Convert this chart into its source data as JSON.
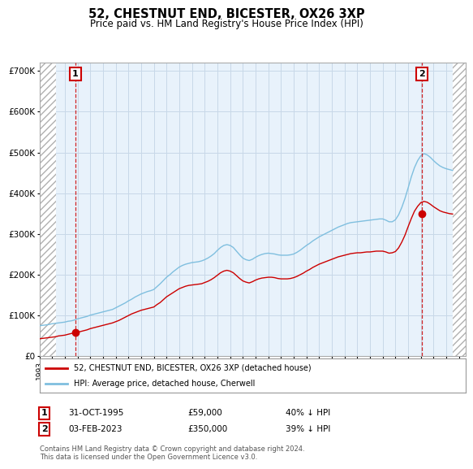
{
  "title": "52, CHESTNUT END, BICESTER, OX26 3XP",
  "subtitle": "Price paid vs. HM Land Registry's House Price Index (HPI)",
  "xlim_left": 1993.0,
  "xlim_right": 2026.5,
  "ylim_bottom": 0,
  "ylim_top": 720000,
  "yticks": [
    0,
    100000,
    200000,
    300000,
    400000,
    500000,
    600000,
    700000
  ],
  "ytick_labels": [
    "£0",
    "£100K",
    "£200K",
    "£300K",
    "£400K",
    "£500K",
    "£600K",
    "£700K"
  ],
  "hpi_color": "#7fbfdf",
  "price_color": "#cc0000",
  "marker1_x": 1995.83,
  "marker1_y": 59000,
  "marker2_x": 2023.08,
  "marker2_y": 350000,
  "grid_color": "#c8d8e8",
  "bg_plot": "#e8f2fb",
  "hatch_left_end": 1994.3,
  "hatch_right_start": 2025.5,
  "legend_line1": "52, CHESTNUT END, BICESTER, OX26 3XP (detached house)",
  "legend_line2": "HPI: Average price, detached house, Cherwell",
  "table_row1": [
    "1",
    "31-OCT-1995",
    "£59,000",
    "40% ↓ HPI"
  ],
  "table_row2": [
    "2",
    "03-FEB-2023",
    "£350,000",
    "39% ↓ HPI"
  ],
  "footnote": "Contains HM Land Registry data © Crown copyright and database right 2024.\nThis data is licensed under the Open Government Licence v3.0.",
  "hpi_x": [
    1993.0,
    1993.25,
    1993.5,
    1993.75,
    1994.0,
    1994.25,
    1994.5,
    1994.75,
    1995.0,
    1995.25,
    1995.5,
    1995.75,
    1996.0,
    1996.25,
    1996.5,
    1996.75,
    1997.0,
    1997.25,
    1997.5,
    1997.75,
    1998.0,
    1998.25,
    1998.5,
    1998.75,
    1999.0,
    1999.25,
    1999.5,
    1999.75,
    2000.0,
    2000.25,
    2000.5,
    2000.75,
    2001.0,
    2001.25,
    2001.5,
    2001.75,
    2002.0,
    2002.25,
    2002.5,
    2002.75,
    2003.0,
    2003.25,
    2003.5,
    2003.75,
    2004.0,
    2004.25,
    2004.5,
    2004.75,
    2005.0,
    2005.25,
    2005.5,
    2005.75,
    2006.0,
    2006.25,
    2006.5,
    2006.75,
    2007.0,
    2007.25,
    2007.5,
    2007.75,
    2008.0,
    2008.25,
    2008.5,
    2008.75,
    2009.0,
    2009.25,
    2009.5,
    2009.75,
    2010.0,
    2010.25,
    2010.5,
    2010.75,
    2011.0,
    2011.25,
    2011.5,
    2011.75,
    2012.0,
    2012.25,
    2012.5,
    2012.75,
    2013.0,
    2013.25,
    2013.5,
    2013.75,
    2014.0,
    2014.25,
    2014.5,
    2014.75,
    2015.0,
    2015.25,
    2015.5,
    2015.75,
    2016.0,
    2016.25,
    2016.5,
    2016.75,
    2017.0,
    2017.25,
    2017.5,
    2017.75,
    2018.0,
    2018.25,
    2018.5,
    2018.75,
    2019.0,
    2019.25,
    2019.5,
    2019.75,
    2020.0,
    2020.25,
    2020.5,
    2020.75,
    2021.0,
    2021.25,
    2021.5,
    2021.75,
    2022.0,
    2022.25,
    2022.5,
    2022.75,
    2023.0,
    2023.25,
    2023.5,
    2023.75,
    2024.0,
    2024.25,
    2024.5,
    2024.75,
    2025.0,
    2025.25,
    2025.5
  ],
  "hpi_y": [
    75000,
    76000,
    77000,
    78000,
    80000,
    81000,
    82000,
    83000,
    84000,
    86000,
    87000,
    89000,
    92000,
    94000,
    96000,
    98000,
    101000,
    103000,
    105000,
    107000,
    109000,
    111000,
    113000,
    115000,
    119000,
    123000,
    127000,
    131000,
    136000,
    140000,
    145000,
    149000,
    153000,
    156000,
    159000,
    161000,
    164000,
    171000,
    178000,
    186000,
    194000,
    200000,
    207000,
    213000,
    219000,
    223000,
    226000,
    228000,
    230000,
    231000,
    232000,
    234000,
    237000,
    241000,
    246000,
    252000,
    260000,
    267000,
    272000,
    274000,
    272000,
    267000,
    258000,
    249000,
    241000,
    237000,
    235000,
    238000,
    243000,
    247000,
    250000,
    252000,
    253000,
    252000,
    251000,
    249000,
    248000,
    248000,
    248000,
    249000,
    251000,
    255000,
    260000,
    266000,
    272000,
    277000,
    283000,
    288000,
    293000,
    297000,
    301000,
    305000,
    309000,
    313000,
    317000,
    320000,
    323000,
    326000,
    328000,
    329000,
    330000,
    331000,
    332000,
    333000,
    334000,
    335000,
    336000,
    337000,
    337000,
    334000,
    330000,
    330000,
    335000,
    347000,
    365000,
    387000,
    413000,
    440000,
    463000,
    480000,
    492000,
    497000,
    494000,
    488000,
    480000,
    473000,
    467000,
    463000,
    460000,
    458000,
    456000
  ],
  "price_x": [
    1993.0,
    1993.25,
    1993.5,
    1993.75,
    1994.0,
    1994.25,
    1994.5,
    1994.75,
    1995.0,
    1995.25,
    1995.5,
    1995.75,
    1996.0,
    1996.25,
    1996.5,
    1996.75,
    1997.0,
    1997.25,
    1997.5,
    1997.75,
    1998.0,
    1998.25,
    1998.5,
    1998.75,
    1999.0,
    1999.25,
    1999.5,
    1999.75,
    2000.0,
    2000.25,
    2000.5,
    2000.75,
    2001.0,
    2001.25,
    2001.5,
    2001.75,
    2002.0,
    2002.25,
    2002.5,
    2002.75,
    2003.0,
    2003.25,
    2003.5,
    2003.75,
    2004.0,
    2004.25,
    2004.5,
    2004.75,
    2005.0,
    2005.25,
    2005.5,
    2005.75,
    2006.0,
    2006.25,
    2006.5,
    2006.75,
    2007.0,
    2007.25,
    2007.5,
    2007.75,
    2008.0,
    2008.25,
    2008.5,
    2008.75,
    2009.0,
    2009.25,
    2009.5,
    2009.75,
    2010.0,
    2010.25,
    2010.5,
    2010.75,
    2011.0,
    2011.25,
    2011.5,
    2011.75,
    2012.0,
    2012.25,
    2012.5,
    2012.75,
    2013.0,
    2013.25,
    2013.5,
    2013.75,
    2014.0,
    2014.25,
    2014.5,
    2014.75,
    2015.0,
    2015.25,
    2015.5,
    2015.75,
    2016.0,
    2016.25,
    2016.5,
    2016.75,
    2017.0,
    2017.25,
    2017.5,
    2017.75,
    2018.0,
    2018.25,
    2018.5,
    2018.75,
    2019.0,
    2019.25,
    2019.5,
    2019.75,
    2020.0,
    2020.25,
    2020.5,
    2020.75,
    2021.0,
    2021.25,
    2021.5,
    2021.75,
    2022.0,
    2022.25,
    2022.5,
    2022.75,
    2023.0,
    2023.25,
    2023.5,
    2023.75,
    2024.0,
    2024.25,
    2024.5,
    2024.75,
    2025.0,
    2025.25,
    2025.5
  ],
  "price_y": [
    43000,
    44000,
    45000,
    46000,
    47000,
    48000,
    50000,
    51000,
    52000,
    54000,
    56000,
    57000,
    59000,
    61000,
    63000,
    65000,
    68000,
    70000,
    72000,
    74000,
    76000,
    78000,
    80000,
    82000,
    85000,
    88000,
    92000,
    96000,
    100000,
    104000,
    107000,
    110000,
    113000,
    115000,
    117000,
    119000,
    121000,
    127000,
    132000,
    139000,
    146000,
    151000,
    156000,
    161000,
    166000,
    169000,
    172000,
    174000,
    175000,
    176000,
    177000,
    178000,
    181000,
    184000,
    188000,
    193000,
    199000,
    205000,
    209000,
    211000,
    209000,
    205000,
    198000,
    191000,
    185000,
    182000,
    180000,
    183000,
    187000,
    190000,
    192000,
    193000,
    194000,
    194000,
    193000,
    191000,
    190000,
    190000,
    190000,
    191000,
    193000,
    196000,
    200000,
    204000,
    209000,
    213000,
    218000,
    222000,
    226000,
    229000,
    232000,
    235000,
    238000,
    241000,
    244000,
    246000,
    248000,
    250000,
    252000,
    253000,
    254000,
    254000,
    255000,
    256000,
    256000,
    257000,
    258000,
    258000,
    258000,
    256000,
    253000,
    254000,
    257000,
    266000,
    280000,
    297000,
    318000,
    338000,
    356000,
    368000,
    377000,
    380000,
    378000,
    373000,
    367000,
    362000,
    357000,
    354000,
    352000,
    350000,
    349000
  ]
}
